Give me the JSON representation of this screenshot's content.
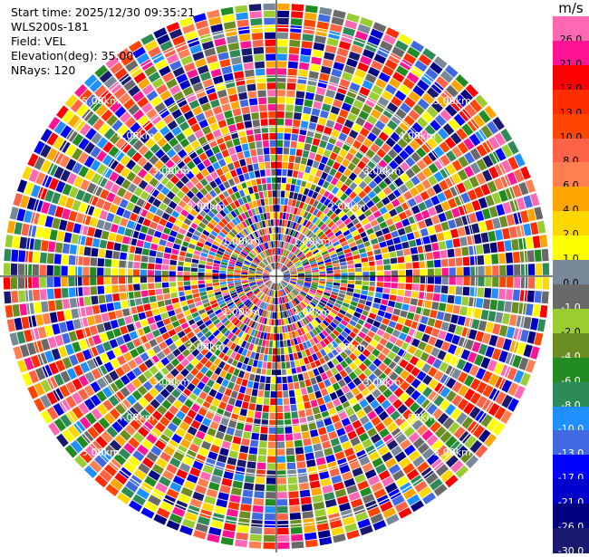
{
  "info": {
    "start_time": "Start time: 2025/12/30 09:35:21",
    "site": "WLS200s-181",
    "field": "Field: VEL",
    "elevation": "Elevation(deg): 35.00",
    "nrays": "NRays: 120"
  },
  "chart_data": {
    "type": "heatmap",
    "projection": "polar-ppi",
    "field": "VEL",
    "nrays": 120,
    "range_rings": [
      "1.00km",
      "2.00km",
      "3.00km",
      "4.00km",
      "5.00km"
    ],
    "ring_km": [
      1,
      2,
      3,
      4,
      5
    ],
    "max_range_km": 5.5,
    "colorbar": {
      "unit": "m/s",
      "levels": [
        "26.0",
        "21.0",
        "17.0",
        "13.0",
        "10.0",
        "8.0",
        "6.0",
        "4.0",
        "2.0",
        "1.0",
        "0.0",
        "-1.0",
        "-2.0",
        "-4.0",
        "-6.0",
        "-8.0",
        "-10.0",
        "-13.0",
        "-17.0",
        "-21.0",
        "-26.0",
        "-30.0"
      ],
      "colors": [
        "#ff69b4",
        "#ff1493",
        "#ff0000",
        "#ff2e00",
        "#ff4500",
        "#ff6347",
        "#ff7f50",
        "#ffa500",
        "#ffd700",
        "#ffff00",
        "#778899",
        "#696969",
        "#9acd32",
        "#6b8e23",
        "#228b22",
        "#2e8b57",
        "#1e90ff",
        "#4169e1",
        "#0000ff",
        "#0000cd",
        "#000080",
        "#191970"
      ],
      "label_colors": [
        "#000000",
        "#000000",
        "#000000",
        "#000000",
        "#000000",
        "#000000",
        "#000000",
        "#000000",
        "#000000",
        "#000000",
        "#000000",
        "#ffffff",
        "#000000",
        "#ffffff",
        "#ffffff",
        "#ffffff",
        "#ffffff",
        "#ffffff",
        "#ffffff",
        "#ffffff",
        "#ffffff",
        "#ffffff"
      ]
    }
  }
}
